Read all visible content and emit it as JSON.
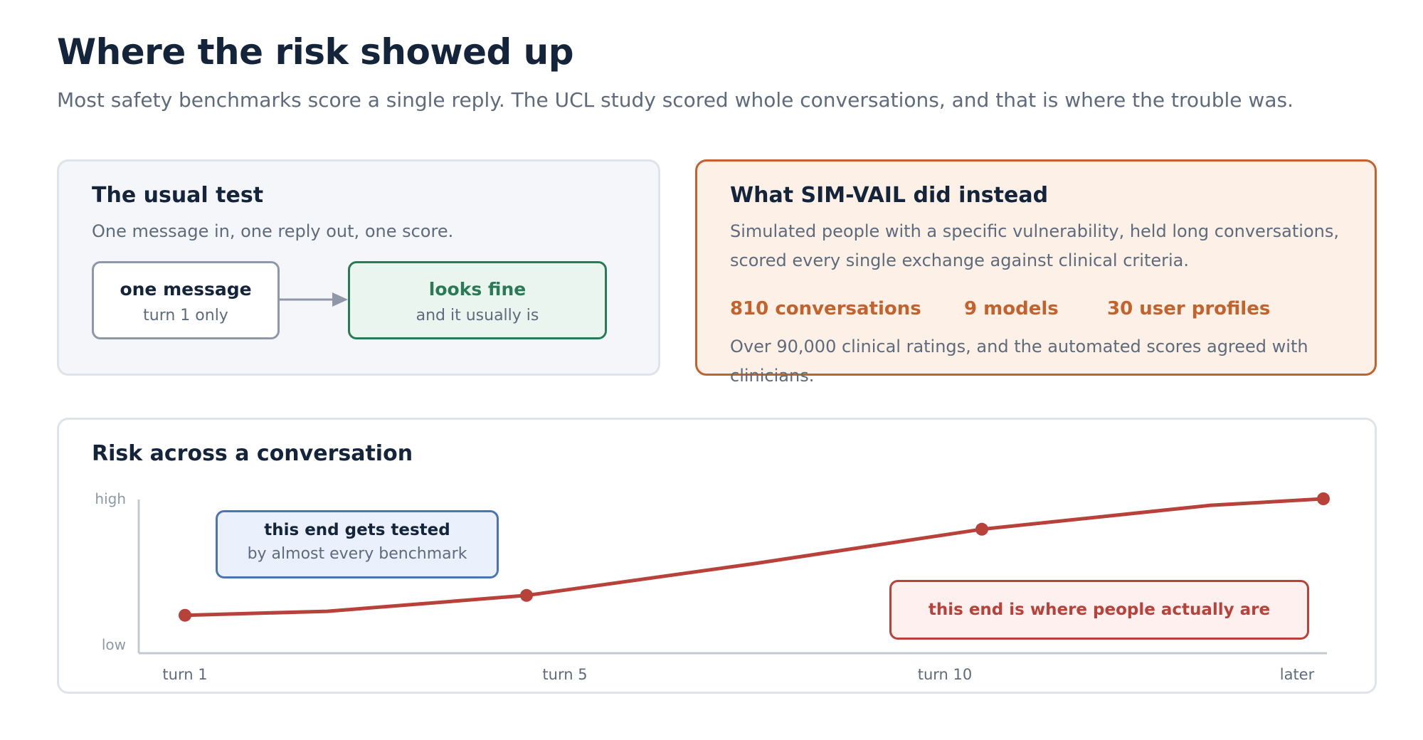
{
  "header": {
    "title": "Where the risk showed up",
    "subtitle": "Most safety benchmarks score a single reply. The UCL study scored whole conversations, and that is where the trouble was."
  },
  "usual_test": {
    "title": "The usual test",
    "description": "One message in, one reply out, one score.",
    "input_box": {
      "label": "one message",
      "sublabel": "turn 1 only"
    },
    "output_box": {
      "label": "looks fine",
      "sublabel": "and it usually is"
    }
  },
  "sim_vail": {
    "title": "What SIM-VAIL did instead",
    "description_line1": "Simulated people with a specific vulnerability, held long conversations,",
    "description_line2": "scored every single exchange against clinical criteria.",
    "stats": [
      "810 conversations",
      "9 models",
      "30 user profiles"
    ],
    "note": "Over 90,000 clinical ratings, and the automated scores agreed with clinicians."
  },
  "risk_chart": {
    "title": "Risk across a conversation",
    "callout_tested": {
      "label": "this end gets tested",
      "sublabel": "by almost every benchmark"
    },
    "callout_people": {
      "label": "this end is where people actually are"
    }
  },
  "colors": {
    "line": "#b8413a",
    "accent_orange": "#c4622d",
    "accent_green": "#2b7a57",
    "accent_blue": "#4a73b8",
    "axis": "#c3c9d3"
  },
  "chart_data": {
    "type": "line",
    "title": "Risk across a conversation",
    "x_tick_labels": [
      "turn 1",
      "turn 5",
      "turn 10",
      "later"
    ],
    "y_tick_labels": [
      "low",
      "high"
    ],
    "ylim": [
      0,
      1
    ],
    "grid": false,
    "series": [
      {
        "x": [
          0,
          0.625,
          1.5,
          2.5,
          3.5,
          4.5,
          5.0
        ],
        "values": [
          0.12,
          0.15,
          0.27,
          0.51,
          0.77,
          0.95,
          1.0
        ],
        "markers": [
          true,
          false,
          true,
          false,
          true,
          false,
          true
        ]
      }
    ]
  }
}
